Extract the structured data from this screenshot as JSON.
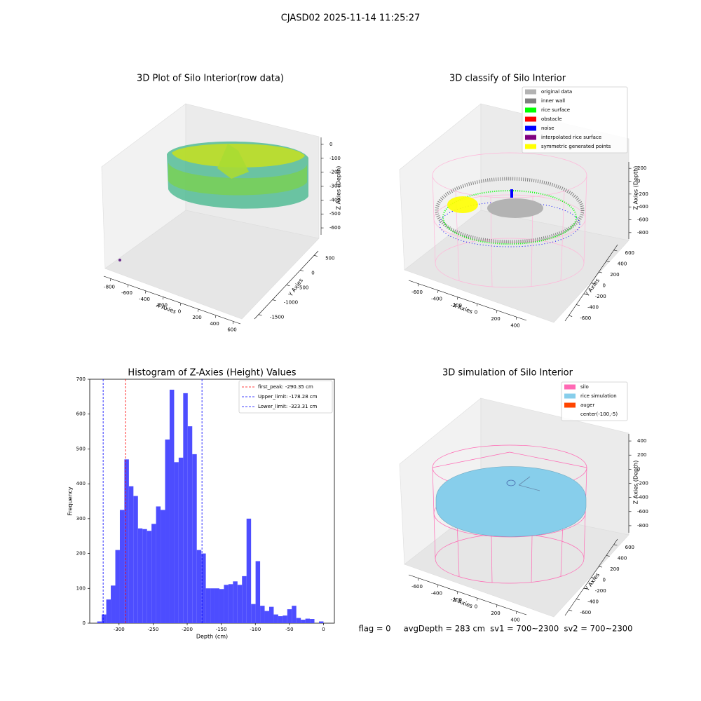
{
  "suptitle": "CJASD02 2025-11-14 11:25:27",
  "footer": "flag = 0     avgDepth = 283 cm  sv1 = 700~2300  sv2 = 700~2300",
  "chart_data": [
    {
      "type": "scatter3d",
      "title": "3D Plot of Silo Interior(row data)",
      "xlabel": "X Axies",
      "ylabel": "Y Axies",
      "zlabel": "Z Axies (Depth)",
      "xlim": [
        -880,
        680
      ],
      "xticks": [
        -800,
        -600,
        -400,
        -200,
        0,
        200,
        400,
        600
      ],
      "ylim": [
        -1650,
        650
      ],
      "yticks": [
        -1500,
        -1000,
        -500,
        0,
        500
      ],
      "zlim": [
        -650,
        50
      ],
      "zticks": [
        -600,
        -500,
        -400,
        -300,
        -200,
        -100,
        0
      ]
    },
    {
      "type": "scatter3d",
      "title": "3D classify of Silo Interior",
      "xlabel": "X Axies",
      "ylabel": "Y Axies",
      "zlabel": "Z Axies (Depth)",
      "xlim": [
        -700,
        500
      ],
      "xticks": [
        -600,
        -400,
        -200,
        0,
        200,
        400
      ],
      "ylim": [
        -700,
        700
      ],
      "yticks": [
        -600,
        -400,
        -200,
        0,
        200,
        400,
        600
      ],
      "zlim": [
        -900,
        300
      ],
      "zticks": [
        -800,
        -600,
        -400,
        -200,
        0,
        200
      ],
      "legend": [
        {
          "name": "original data",
          "color": "#b3b3b3"
        },
        {
          "name": "inner wall",
          "color": "#808080"
        },
        {
          "name": "rice surface",
          "color": "#00ff00"
        },
        {
          "name": "obstacle",
          "color": "#ff0000"
        },
        {
          "name": "noise",
          "color": "#0000ff"
        },
        {
          "name": "interpolated rice surface",
          "color": "#800080"
        },
        {
          "name": "symmetric generated points",
          "color": "#ffff00"
        }
      ]
    },
    {
      "type": "histogram",
      "title": "Histogram of Z-Axies (Height) Values",
      "xlabel": "Depth (cm)",
      "ylabel": "Frequency",
      "color": "#4d4dff",
      "bins": [
        -332,
        -325.36,
        -318.72,
        -312.08,
        -305.44,
        -298.8,
        -292.16,
        -285.52,
        -278.88,
        -272.24,
        -265.6,
        -258.96,
        -252.32,
        -245.68,
        -239.04,
        -232.4,
        -225.76,
        -219.12,
        -212.48,
        -205.84,
        -199.2,
        -192.56,
        -185.92,
        -179.28,
        -172.64,
        -166,
        -159.36,
        -152.72,
        -146.08,
        -139.44,
        -132.8,
        -126.16,
        -119.52,
        -112.88,
        -106.24,
        -99.6,
        -92.96,
        -86.32,
        -79.68,
        -73.04,
        -66.4,
        -59.76,
        -53.12,
        -46.48,
        -39.84,
        -33.2,
        -26.56,
        -19.92,
        -13.28,
        -6.64,
        0
      ],
      "values": [
        5,
        25,
        68,
        108,
        210,
        325,
        470,
        393,
        365,
        272,
        270,
        265,
        285,
        335,
        325,
        527,
        670,
        462,
        475,
        660,
        565,
        485,
        210,
        200,
        100,
        100,
        100,
        98,
        110,
        112,
        120,
        110,
        135,
        300,
        55,
        178,
        50,
        35,
        47,
        25,
        20,
        22,
        40,
        50,
        15,
        10,
        13,
        12,
        0,
        5
      ],
      "xlim": [
        -343,
        16
      ],
      "xticks": [
        -300,
        -250,
        -200,
        -150,
        -100,
        -50,
        0
      ],
      "ylim": [
        0,
        700
      ],
      "yticks": [
        0,
        100,
        200,
        300,
        400,
        500,
        600,
        700
      ],
      "legend_position": "upper right",
      "lines": [
        {
          "label": "first_peak: -290.35 cm",
          "value": -290.35,
          "color": "#ff0000"
        },
        {
          "label": "Upper_limit: -178.28 cm",
          "value": -178.28,
          "color": "#0000ff"
        },
        {
          "label": "Lower_limit: -323.31 cm",
          "value": -323.31,
          "color": "#0000ff"
        }
      ]
    },
    {
      "type": "scatter3d",
      "title": "3D simulation of Silo Interior",
      "xlabel": "X Axies",
      "ylabel": "Y Axies",
      "zlabel": "Z Axies (Depth)",
      "xlim": [
        -700,
        500
      ],
      "xticks": [
        -600,
        -400,
        -200,
        0,
        200,
        400
      ],
      "ylim": [
        -700,
        700
      ],
      "yticks": [
        -600,
        -400,
        -200,
        0,
        200,
        400,
        600
      ],
      "zlim": [
        -900,
        500
      ],
      "zticks": [
        -800,
        -600,
        -400,
        -200,
        0,
        200,
        400
      ],
      "legend": [
        {
          "name": "silo",
          "color": "#ff69b4"
        },
        {
          "name": "rice simulation",
          "color": "#87ceeb"
        },
        {
          "name": "auger",
          "color": "#ff4500"
        },
        {
          "name": "center(-100,-5)"
        }
      ]
    }
  ]
}
